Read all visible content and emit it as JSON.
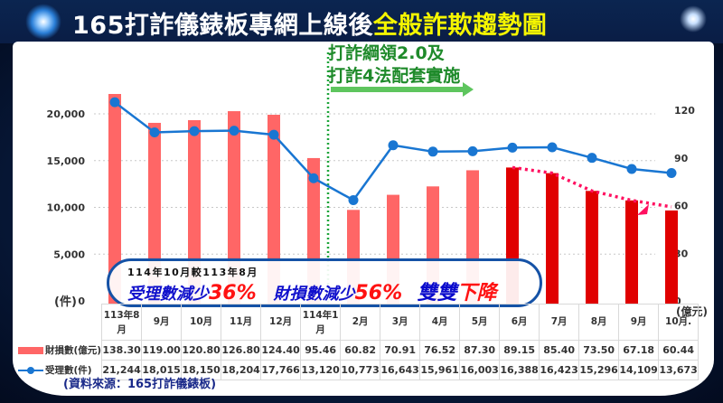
{
  "header": {
    "title_prefix": "165打詐儀錶板專網上線後",
    "title_highlight": "全般詐欺趨勢圖"
  },
  "policy_annotation": {
    "line1": "打詐綱領2.0及",
    "line2": "打詐4法配套實施"
  },
  "callout": {
    "line1": "114年10月較113年8月",
    "cases_label": "受理數減少",
    "cases_pct": "36%",
    "loss_label": "財損數減少",
    "loss_pct": "56%",
    "double": "雙雙",
    "down": "下降"
  },
  "axes": {
    "left_unit": "(件)",
    "right_unit": "(億元)",
    "left_ticks": [
      "0",
      "5,000",
      "10,000",
      "15,000",
      "20,000"
    ],
    "right_ticks": [
      "0",
      "30",
      "60",
      "90",
      "120"
    ]
  },
  "table": {
    "months": [
      "113年8月",
      "9月",
      "10月",
      "11月",
      "12月",
      "114年1月",
      "2月",
      "3月",
      "4月",
      "5月",
      "6月",
      "7月",
      "8月",
      "9月",
      "10月."
    ],
    "loss_label": "財損數(億元)",
    "loss_values": [
      "138.30",
      "119.00",
      "120.80",
      "126.80",
      "124.40",
      "95.46",
      "60.82",
      "70.91",
      "76.52",
      "87.30",
      "89.15",
      "85.40",
      "73.50",
      "67.18",
      "60.44"
    ],
    "cases_label": "受理數(件)",
    "cases_values": [
      "21,244",
      "18,015",
      "18,150",
      "18,204",
      "17,766",
      "13,120",
      "10,773",
      "16,643",
      "15,961",
      "16,003",
      "16,388",
      "16,423",
      "15,296",
      "14,109",
      "13,673"
    ]
  },
  "source": "(資料來源：165打詐儀錶板)",
  "colors": {
    "bar_normal": "#ff6666",
    "bar_highlight": "#e00000",
    "line": "#1976d2",
    "policy_green": "#1e8a2a",
    "title_highlight": "#f5f500",
    "trend_dotted": "#ff1060"
  },
  "chart_data": {
    "type": "bar+line",
    "title": "165打詐儀錶板專網上線後全般詐欺趨勢圖",
    "categories": [
      "113年8月",
      "9月",
      "10月",
      "11月",
      "12月",
      "114年1月",
      "2月",
      "3月",
      "4月",
      "5月",
      "6月",
      "7月",
      "8月",
      "9月",
      "10月."
    ],
    "series": [
      {
        "name": "財損數(億元)",
        "type": "bar",
        "axis": "right",
        "values": [
          138.3,
          119.0,
          120.8,
          126.8,
          124.4,
          95.46,
          60.82,
          70.91,
          76.52,
          87.3,
          89.15,
          85.4,
          73.5,
          67.18,
          60.44
        ]
      },
      {
        "name": "受理數(件)",
        "type": "line",
        "axis": "left",
        "values": [
          21244,
          18015,
          18150,
          18204,
          17766,
          13120,
          10773,
          16643,
          15961,
          16003,
          16388,
          16423,
          15296,
          14109,
          13673
        ]
      }
    ],
    "ylabel_left": "(件)",
    "ylabel_right": "(億元)",
    "ylim_left": [
      0,
      20000
    ],
    "ylim_right": [
      0,
      120
    ],
    "left_ticks": [
      0,
      5000,
      10000,
      15000,
      20000
    ],
    "right_ticks": [
      0,
      30,
      60,
      90,
      120
    ],
    "grid": true,
    "annotations": [
      "打詐綱領2.0及 打詐4法配套實施 (vertical marker between 114年1月 and 2月)",
      "114年10月較113年8月 受理數減少36% 財損數減少56% 雙雙下降"
    ],
    "source": "165打詐儀錶板"
  }
}
